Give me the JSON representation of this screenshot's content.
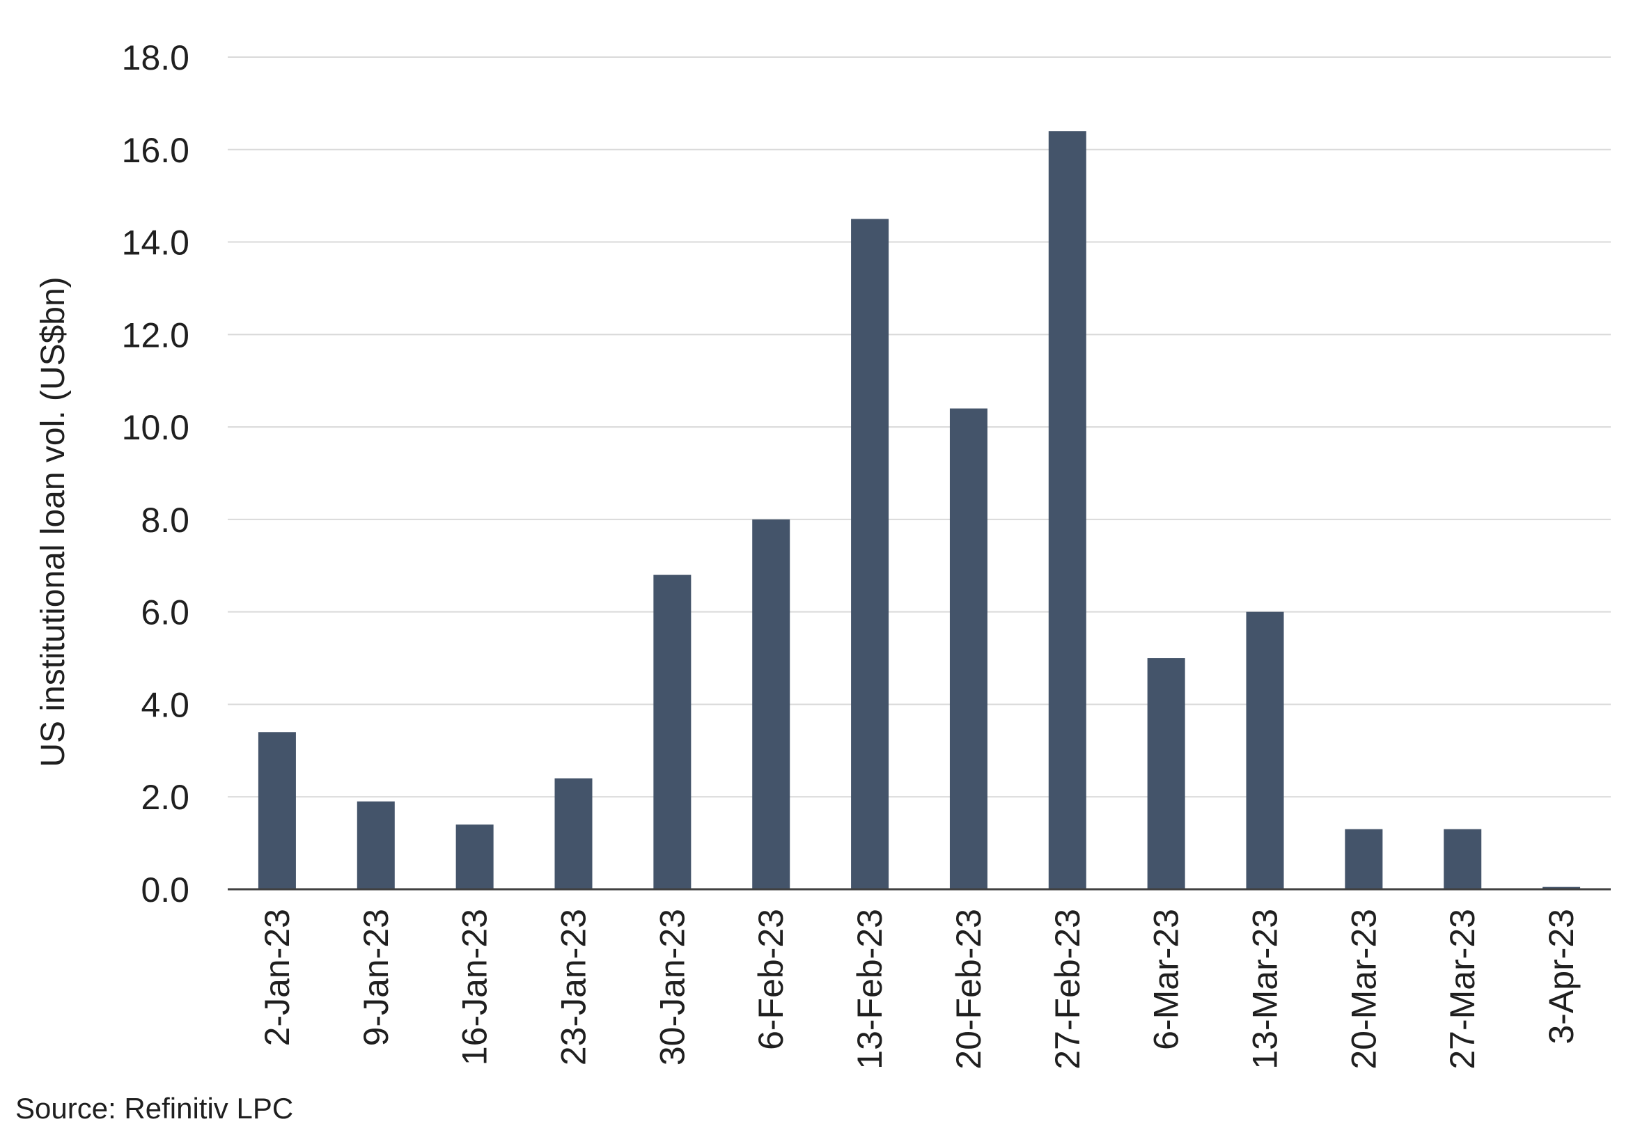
{
  "chart_data": {
    "type": "bar",
    "title": "",
    "xlabel": "",
    "ylabel": "US institutional loan vol. (US$bn)",
    "categories": [
      "2-Jan-23",
      "9-Jan-23",
      "16-Jan-23",
      "23-Jan-23",
      "30-Jan-23",
      "6-Feb-23",
      "13-Feb-23",
      "20-Feb-23",
      "27-Feb-23",
      "6-Mar-23",
      "13-Mar-23",
      "20-Mar-23",
      "27-Mar-23",
      "3-Apr-23"
    ],
    "values": [
      3.4,
      1.9,
      1.4,
      2.4,
      6.8,
      8.0,
      14.5,
      10.4,
      16.4,
      5.0,
      6.0,
      1.3,
      1.3,
      0.05
    ],
    "ylim": [
      0,
      18
    ],
    "yticks": [
      "0.0",
      "2.0",
      "4.0",
      "6.0",
      "8.0",
      "10.0",
      "12.0",
      "14.0",
      "16.0",
      "18.0"
    ],
    "grid": true,
    "bar_color": "#44546a",
    "gridline_color": "#d9d9d9",
    "axis_color": "#404040"
  },
  "source": "Source: Refinitiv LPC"
}
